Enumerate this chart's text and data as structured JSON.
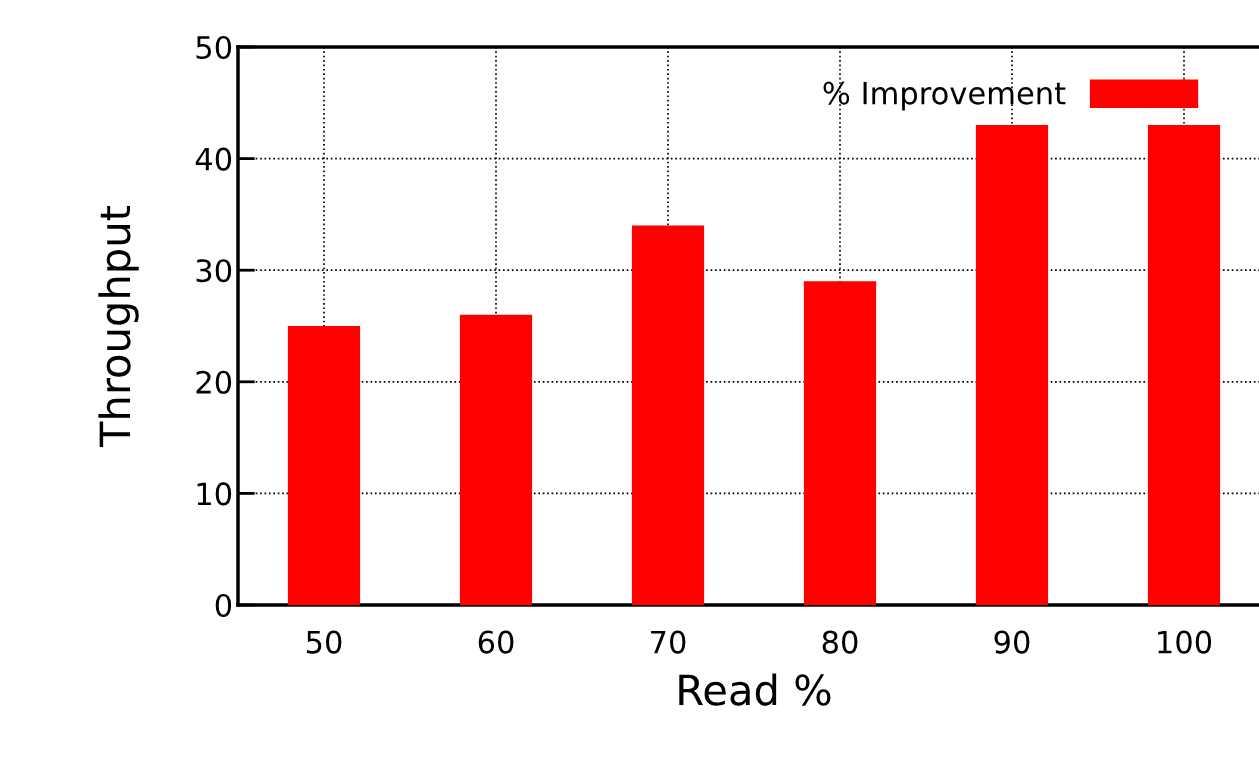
{
  "chart_data": {
    "type": "bar",
    "xlabel": "Read %",
    "ylabel": "Throughput",
    "categories": [
      "50",
      "60",
      "70",
      "80",
      "90",
      "100"
    ],
    "series": [
      {
        "name": "% Improvement",
        "color": "#ff0000",
        "values": [
          25,
          26,
          34,
          29,
          43,
          43
        ]
      }
    ],
    "ylim": [
      0,
      50
    ],
    "yticks": [
      0,
      10,
      20,
      30,
      40,
      50
    ],
    "grid": true,
    "legend": "top right"
  }
}
